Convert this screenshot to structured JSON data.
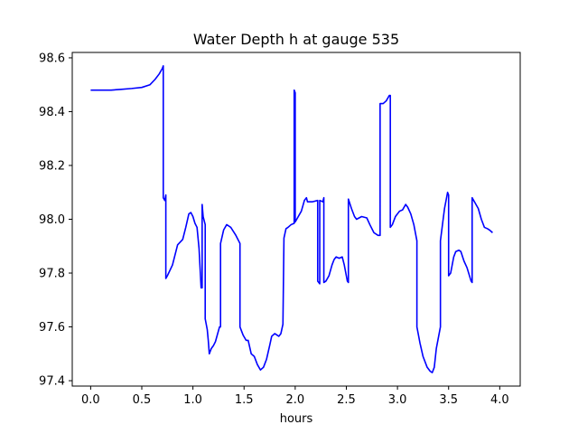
{
  "chart_data": {
    "type": "line",
    "title": "Water Depth h at gauge 535",
    "xlabel": "hours",
    "ylabel": "",
    "xlim": [
      -0.18,
      4.2
    ],
    "ylim": [
      97.38,
      98.62
    ],
    "xticks": [
      0.0,
      0.5,
      1.0,
      1.5,
      2.0,
      2.5,
      3.0,
      3.5,
      4.0
    ],
    "xtick_labels": [
      "0.0",
      "0.5",
      "1.0",
      "1.5",
      "2.0",
      "2.5",
      "3.0",
      "3.5",
      "4.0"
    ],
    "yticks": [
      97.4,
      97.6,
      97.8,
      98.0,
      98.2,
      98.4,
      98.6
    ],
    "ytick_labels": [
      "97.4",
      "97.6",
      "97.8",
      "98.0",
      "98.2",
      "98.4",
      "98.6"
    ],
    "grid": false,
    "series": [
      {
        "color": "#0000ff",
        "points": [
          [
            0.0,
            98.48
          ],
          [
            0.1,
            98.48
          ],
          [
            0.2,
            98.48
          ],
          [
            0.3,
            98.483
          ],
          [
            0.4,
            98.486
          ],
          [
            0.5,
            98.49
          ],
          [
            0.58,
            98.5
          ],
          [
            0.63,
            98.52
          ],
          [
            0.67,
            98.54
          ],
          [
            0.7,
            98.56
          ],
          [
            0.71,
            98.57
          ],
          [
            0.71,
            98.08
          ],
          [
            0.725,
            98.07
          ],
          [
            0.735,
            98.09
          ],
          [
            0.735,
            97.78
          ],
          [
            0.75,
            97.79
          ],
          [
            0.8,
            97.83
          ],
          [
            0.85,
            97.905
          ],
          [
            0.9,
            97.925
          ],
          [
            0.93,
            97.97
          ],
          [
            0.96,
            98.02
          ],
          [
            0.98,
            98.025
          ],
          [
            1.0,
            98.01
          ],
          [
            1.02,
            97.985
          ],
          [
            1.04,
            97.97
          ],
          [
            1.06,
            97.89
          ],
          [
            1.08,
            97.745
          ],
          [
            1.09,
            97.745
          ],
          [
            1.09,
            98.055
          ],
          [
            1.1,
            98.01
          ],
          [
            1.12,
            97.98
          ],
          [
            1.12,
            97.63
          ],
          [
            1.14,
            97.59
          ],
          [
            1.15,
            97.55
          ],
          [
            1.16,
            97.5
          ],
          [
            1.18,
            97.52
          ],
          [
            1.2,
            97.53
          ],
          [
            1.22,
            97.545
          ],
          [
            1.26,
            97.6
          ],
          [
            1.27,
            97.6
          ],
          [
            1.27,
            97.91
          ],
          [
            1.3,
            97.96
          ],
          [
            1.33,
            97.98
          ],
          [
            1.37,
            97.97
          ],
          [
            1.42,
            97.94
          ],
          [
            1.46,
            97.91
          ],
          [
            1.46,
            97.6
          ],
          [
            1.49,
            97.57
          ],
          [
            1.52,
            97.55
          ],
          [
            1.54,
            97.55
          ],
          [
            1.57,
            97.5
          ],
          [
            1.6,
            97.49
          ],
          [
            1.63,
            97.46
          ],
          [
            1.66,
            97.44
          ],
          [
            1.69,
            97.45
          ],
          [
            1.72,
            97.48
          ],
          [
            1.75,
            97.53
          ],
          [
            1.77,
            97.565
          ],
          [
            1.8,
            97.575
          ],
          [
            1.82,
            97.57
          ],
          [
            1.84,
            97.565
          ],
          [
            1.86,
            97.575
          ],
          [
            1.88,
            97.61
          ],
          [
            1.89,
            97.93
          ],
          [
            1.91,
            97.965
          ],
          [
            1.93,
            97.97
          ],
          [
            1.96,
            97.98
          ],
          [
            1.99,
            97.985
          ],
          [
            1.99,
            98.48
          ],
          [
            2.0,
            98.47
          ],
          [
            2.0,
            97.99
          ],
          [
            2.03,
            98.01
          ],
          [
            2.06,
            98.03
          ],
          [
            2.09,
            98.07
          ],
          [
            2.11,
            98.08
          ],
          [
            2.12,
            98.065
          ],
          [
            2.17,
            98.065
          ],
          [
            2.22,
            98.07
          ],
          [
            2.22,
            97.77
          ],
          [
            2.24,
            97.76
          ],
          [
            2.24,
            98.07
          ],
          [
            2.27,
            98.065
          ],
          [
            2.28,
            98.08
          ],
          [
            2.28,
            97.765
          ],
          [
            2.3,
            97.77
          ],
          [
            2.33,
            97.79
          ],
          [
            2.36,
            97.83
          ],
          [
            2.38,
            97.85
          ],
          [
            2.4,
            97.86
          ],
          [
            2.43,
            97.855
          ],
          [
            2.46,
            97.86
          ],
          [
            2.48,
            97.83
          ],
          [
            2.51,
            97.77
          ],
          [
            2.52,
            97.765
          ],
          [
            2.52,
            98.075
          ],
          [
            2.55,
            98.04
          ],
          [
            2.58,
            98.01
          ],
          [
            2.6,
            98.0
          ],
          [
            2.65,
            98.01
          ],
          [
            2.7,
            98.005
          ],
          [
            2.73,
            97.98
          ],
          [
            2.77,
            97.95
          ],
          [
            2.81,
            97.94
          ],
          [
            2.83,
            97.94
          ],
          [
            2.83,
            98.43
          ],
          [
            2.86,
            98.43
          ],
          [
            2.89,
            98.44
          ],
          [
            2.92,
            98.46
          ],
          [
            2.93,
            98.46
          ],
          [
            2.93,
            97.97
          ],
          [
            2.95,
            97.98
          ],
          [
            2.98,
            98.01
          ],
          [
            3.02,
            98.03
          ],
          [
            3.05,
            98.035
          ],
          [
            3.08,
            98.055
          ],
          [
            3.1,
            98.045
          ],
          [
            3.13,
            98.02
          ],
          [
            3.16,
            97.98
          ],
          [
            3.19,
            97.92
          ],
          [
            3.19,
            97.6
          ],
          [
            3.22,
            97.54
          ],
          [
            3.25,
            97.49
          ],
          [
            3.29,
            97.45
          ],
          [
            3.32,
            97.435
          ],
          [
            3.34,
            97.43
          ],
          [
            3.36,
            97.45
          ],
          [
            3.38,
            97.52
          ],
          [
            3.4,
            97.56
          ],
          [
            3.42,
            97.6
          ],
          [
            3.42,
            97.92
          ],
          [
            3.44,
            97.98
          ],
          [
            3.46,
            98.04
          ],
          [
            3.49,
            98.1
          ],
          [
            3.5,
            98.09
          ],
          [
            3.5,
            97.79
          ],
          [
            3.52,
            97.8
          ],
          [
            3.55,
            97.86
          ],
          [
            3.57,
            97.88
          ],
          [
            3.6,
            97.885
          ],
          [
            3.62,
            97.88
          ],
          [
            3.65,
            97.845
          ],
          [
            3.68,
            97.82
          ],
          [
            3.72,
            97.77
          ],
          [
            3.73,
            97.765
          ],
          [
            3.73,
            98.08
          ],
          [
            3.76,
            98.06
          ],
          [
            3.79,
            98.04
          ],
          [
            3.82,
            98.0
          ],
          [
            3.85,
            97.97
          ],
          [
            3.88,
            97.965
          ],
          [
            3.9,
            97.96
          ],
          [
            3.93,
            97.95
          ]
        ]
      }
    ]
  }
}
